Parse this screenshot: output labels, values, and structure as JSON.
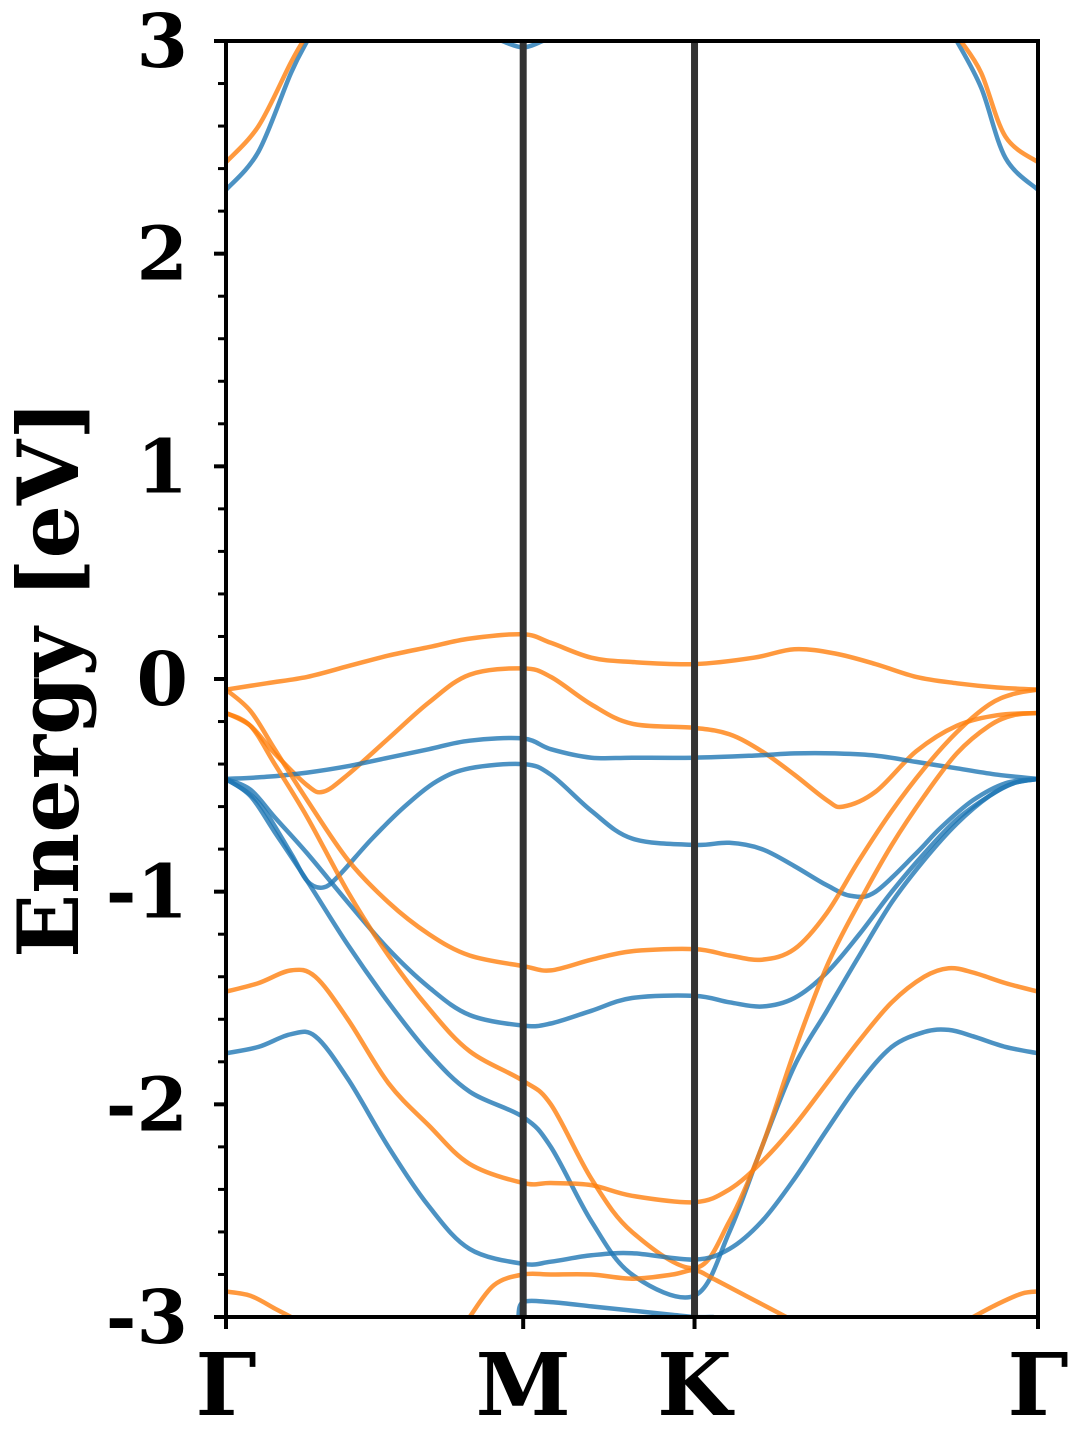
{
  "chart_data": {
    "type": "line",
    "title": "",
    "xlabel": "",
    "ylabel": "Energy [eV]",
    "ylim": [
      -3,
      3
    ],
    "xlim": [
      0,
      1
    ],
    "yticks": [
      -3,
      -2,
      -1,
      0,
      1,
      2,
      3
    ],
    "ytick_labels": [
      "-3",
      "-2",
      "-1",
      "0",
      "1",
      "2",
      "3"
    ],
    "xticks": [
      {
        "pos": 0.0,
        "label": "Γ"
      },
      {
        "pos": 0.366,
        "label": "M"
      },
      {
        "pos": 0.577,
        "label": "K"
      },
      {
        "pos": 1.0,
        "label": "Γ"
      }
    ],
    "high_symmetry_lines": [
      0.366,
      0.577
    ],
    "colors": {
      "spin_up": "#1f77b4",
      "spin_down": "#ff7f0e",
      "lines": "#333333"
    },
    "grid": false,
    "legend": "none",
    "series": [
      {
        "color": "#1f77b4",
        "x": [
          0.0,
          0.04,
          0.08,
          0.1
        ],
        "y": [
          2.3,
          2.48,
          2.85,
          3.0
        ]
      },
      {
        "color": "#1f77b4",
        "x": [
          0.9,
          0.93,
          0.96,
          1.0
        ],
        "y": [
          3.0,
          2.78,
          2.45,
          2.3
        ]
      },
      {
        "color": "#ff7f0e",
        "x": [
          0.0,
          0.04,
          0.08,
          0.095
        ],
        "y": [
          2.43,
          2.6,
          2.9,
          3.0
        ]
      },
      {
        "color": "#ff7f0e",
        "x": [
          0.905,
          0.93,
          0.96,
          1.0
        ],
        "y": [
          3.0,
          2.85,
          2.55,
          2.43
        ]
      },
      {
        "color": "#1f77b4",
        "x": [
          0.34,
          0.366,
          0.39
        ],
        "y": [
          3.0,
          2.97,
          3.0
        ]
      },
      {
        "color": "#ff7f0e",
        "x": [
          0.0,
          0.05,
          0.1,
          0.15,
          0.2,
          0.25,
          0.3,
          0.366,
          0.4,
          0.45,
          0.5,
          0.577,
          0.65,
          0.7,
          0.75,
          0.8,
          0.85,
          0.9,
          0.95,
          1.0
        ],
        "y": [
          -0.05,
          -0.02,
          0.01,
          0.06,
          0.11,
          0.15,
          0.19,
          0.21,
          0.17,
          0.1,
          0.08,
          0.07,
          0.1,
          0.14,
          0.12,
          0.07,
          0.01,
          -0.02,
          -0.04,
          -0.05
        ]
      },
      {
        "color": "#ff7f0e",
        "x": [
          0.0,
          0.03,
          0.06,
          0.1,
          0.12,
          0.15,
          0.2,
          0.25,
          0.3,
          0.366,
          0.4,
          0.45,
          0.5,
          0.577,
          0.62,
          0.66,
          0.7,
          0.74,
          0.76,
          0.8,
          0.85,
          0.9,
          0.95,
          1.0
        ],
        "y": [
          -0.16,
          -0.22,
          -0.35,
          -0.5,
          -0.53,
          -0.45,
          -0.28,
          -0.11,
          0.02,
          0.05,
          0.01,
          -0.12,
          -0.21,
          -0.23,
          -0.26,
          -0.34,
          -0.45,
          -0.57,
          -0.6,
          -0.53,
          -0.34,
          -0.22,
          -0.17,
          -0.16
        ]
      },
      {
        "color": "#1f77b4",
        "x": [
          0.0,
          0.05,
          0.1,
          0.15,
          0.2,
          0.25,
          0.3,
          0.366,
          0.4,
          0.45,
          0.5,
          0.577,
          0.65,
          0.7,
          0.75,
          0.8,
          0.85,
          0.9,
          0.95,
          1.0
        ],
        "y": [
          -0.47,
          -0.46,
          -0.44,
          -0.41,
          -0.37,
          -0.33,
          -0.29,
          -0.28,
          -0.33,
          -0.37,
          -0.37,
          -0.37,
          -0.36,
          -0.35,
          -0.35,
          -0.36,
          -0.39,
          -0.42,
          -0.45,
          -0.47
        ]
      },
      {
        "color": "#1f77b4",
        "x": [
          0.0,
          0.04,
          0.08,
          0.1,
          0.12,
          0.14,
          0.18,
          0.22,
          0.26,
          0.3,
          0.366,
          0.4,
          0.45,
          0.5,
          0.577,
          0.62,
          0.66,
          0.7,
          0.74,
          0.77,
          0.8,
          0.85,
          0.88,
          0.92,
          0.96,
          1.0
        ],
        "y": [
          -0.47,
          -0.58,
          -0.82,
          -0.95,
          -0.98,
          -0.92,
          -0.75,
          -0.6,
          -0.48,
          -0.42,
          -0.4,
          -0.45,
          -0.62,
          -0.75,
          -0.78,
          -0.77,
          -0.8,
          -0.88,
          -0.97,
          -1.02,
          -1.0,
          -0.82,
          -0.7,
          -0.57,
          -0.49,
          -0.47
        ]
      },
      {
        "color": "#1f77b4",
        "x": [
          0.0,
          0.03,
          0.06,
          0.1,
          0.15,
          0.2,
          0.25,
          0.3,
          0.366,
          0.4,
          0.45,
          0.5,
          0.577,
          0.62,
          0.66,
          0.7,
          0.74,
          0.78,
          0.82,
          0.86,
          0.9,
          0.94,
          0.97,
          1.0
        ],
        "y": [
          -0.47,
          -0.55,
          -0.72,
          -0.95,
          -1.25,
          -1.52,
          -1.76,
          -1.94,
          -2.06,
          -2.2,
          -2.55,
          -2.8,
          -2.9,
          -2.6,
          -2.2,
          -1.82,
          -1.56,
          -1.3,
          -1.05,
          -0.85,
          -0.68,
          -0.55,
          -0.49,
          -0.47
        ]
      },
      {
        "color": "#1f77b4",
        "x": [
          0.0,
          0.03,
          0.06,
          0.1,
          0.15,
          0.2,
          0.25,
          0.3,
          0.366,
          0.4,
          0.45,
          0.5,
          0.577,
          0.62,
          0.66,
          0.7,
          0.74,
          0.78,
          0.82,
          0.86,
          0.9,
          0.94,
          0.97,
          1.0
        ],
        "y": [
          -0.47,
          -0.52,
          -0.65,
          -0.82,
          -1.05,
          -1.27,
          -1.45,
          -1.58,
          -1.63,
          -1.62,
          -1.56,
          -1.5,
          -1.49,
          -1.52,
          -1.54,
          -1.5,
          -1.38,
          -1.2,
          -1.0,
          -0.82,
          -0.66,
          -0.55,
          -0.49,
          -0.47
        ]
      },
      {
        "color": "#ff7f0e",
        "x": [
          0.0,
          0.03,
          0.06,
          0.1,
          0.15,
          0.2,
          0.25,
          0.3,
          0.366,
          0.4,
          0.45,
          0.5,
          0.577,
          0.62,
          0.66,
          0.7,
          0.74,
          0.78,
          0.82,
          0.86,
          0.9,
          0.94,
          0.97,
          1.0
        ],
        "y": [
          -0.16,
          -0.22,
          -0.4,
          -0.65,
          -1.0,
          -1.3,
          -1.55,
          -1.75,
          -1.89,
          -2.0,
          -2.35,
          -2.6,
          -2.77,
          -2.55,
          -2.2,
          -1.75,
          -1.35,
          -1.05,
          -0.78,
          -0.55,
          -0.35,
          -0.22,
          -0.17,
          -0.16
        ]
      },
      {
        "color": "#ff7f0e",
        "x": [
          0.0,
          0.03,
          0.06,
          0.1,
          0.15,
          0.2,
          0.25,
          0.3,
          0.366,
          0.4,
          0.45,
          0.5,
          0.577,
          0.62,
          0.66,
          0.7,
          0.74,
          0.78,
          0.82,
          0.86,
          0.9,
          0.94,
          0.97,
          1.0
        ],
        "y": [
          -0.05,
          -0.15,
          -0.33,
          -0.57,
          -0.85,
          -1.05,
          -1.2,
          -1.3,
          -1.35,
          -1.37,
          -1.32,
          -1.28,
          -1.27,
          -1.3,
          -1.32,
          -1.27,
          -1.1,
          -0.85,
          -0.62,
          -0.42,
          -0.25,
          -0.12,
          -0.07,
          -0.05
        ]
      },
      {
        "color": "#ff7f0e",
        "x": [
          0.0,
          0.04,
          0.08,
          0.11,
          0.15,
          0.2,
          0.25,
          0.3,
          0.366,
          0.4,
          0.45,
          0.5,
          0.577,
          0.62,
          0.66,
          0.7,
          0.74,
          0.78,
          0.82,
          0.86,
          0.89,
          0.92,
          0.96,
          1.0
        ],
        "y": [
          -1.47,
          -1.43,
          -1.37,
          -1.4,
          -1.6,
          -1.9,
          -2.1,
          -2.28,
          -2.37,
          -2.37,
          -2.38,
          -2.43,
          -2.46,
          -2.4,
          -2.27,
          -2.1,
          -1.9,
          -1.7,
          -1.52,
          -1.4,
          -1.36,
          -1.38,
          -1.43,
          -1.47
        ]
      },
      {
        "color": "#1f77b4",
        "x": [
          0.0,
          0.04,
          0.08,
          0.11,
          0.15,
          0.2,
          0.25,
          0.3,
          0.366,
          0.4,
          0.45,
          0.5,
          0.577,
          0.62,
          0.66,
          0.7,
          0.74,
          0.78,
          0.82,
          0.86,
          0.89,
          0.92,
          0.96,
          1.0
        ],
        "y": [
          -1.76,
          -1.73,
          -1.67,
          -1.68,
          -1.88,
          -2.2,
          -2.48,
          -2.68,
          -2.75,
          -2.74,
          -2.71,
          -2.7,
          -2.73,
          -2.68,
          -2.55,
          -2.35,
          -2.12,
          -1.9,
          -1.73,
          -1.66,
          -1.65,
          -1.68,
          -1.73,
          -1.76
        ]
      },
      {
        "color": "#ff7f0e",
        "x": [
          0.0,
          0.03,
          0.06,
          0.08
        ],
        "y": [
          -2.88,
          -2.9,
          -2.96,
          -3.0
        ]
      },
      {
        "color": "#ff7f0e",
        "x": [
          0.92,
          0.95,
          0.98,
          1.0
        ],
        "y": [
          -3.0,
          -2.94,
          -2.89,
          -2.88
        ]
      },
      {
        "color": "#ff7f0e",
        "x": [
          0.3,
          0.33,
          0.366,
          0.4,
          0.45,
          0.5,
          0.55,
          0.577,
          0.6,
          0.64,
          0.68,
          0.69
        ],
        "y": [
          -3.0,
          -2.85,
          -2.8,
          -2.8,
          -2.8,
          -2.82,
          -2.8,
          -2.78,
          -2.82,
          -2.9,
          -2.98,
          -3.0
        ]
      },
      {
        "color": "#1f77b4",
        "x": [
          0.36,
          0.366,
          0.4,
          0.45,
          0.5,
          0.55,
          0.577,
          0.6
        ],
        "y": [
          -3.0,
          -2.93,
          -2.93,
          -2.95,
          -2.97,
          -2.99,
          -3.0,
          -3.0
        ]
      }
    ]
  }
}
